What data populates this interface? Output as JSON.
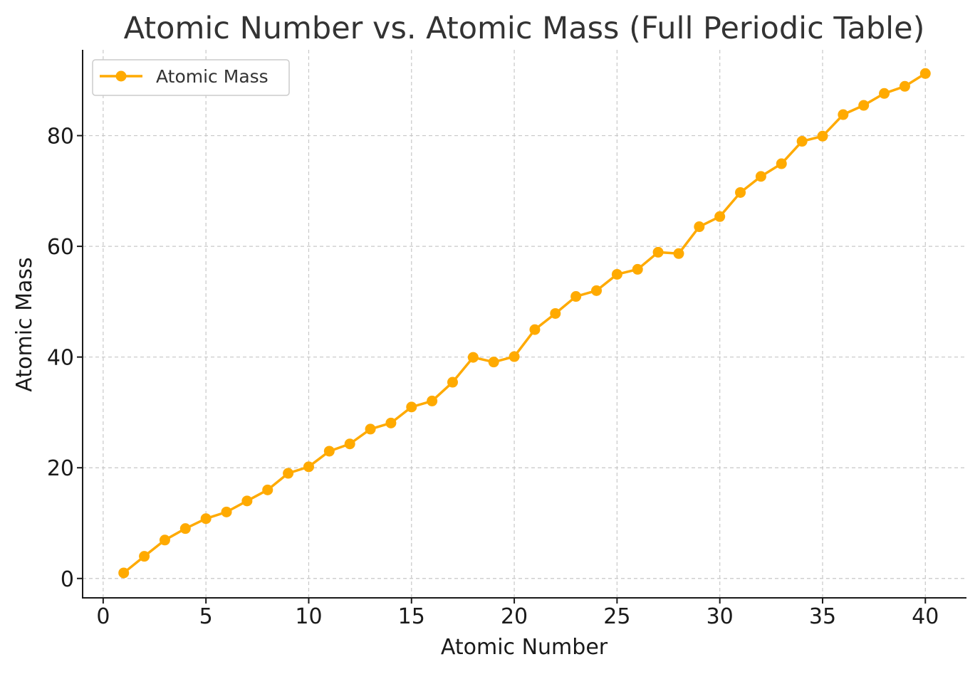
{
  "chart_data": {
    "type": "line",
    "title": "Atomic Number vs. Atomic Mass (Full Periodic Table)",
    "xlabel": "Atomic Number",
    "ylabel": "Atomic Mass",
    "xlim": [
      -1,
      42
    ],
    "ylim": [
      -3.5,
      95.5
    ],
    "x_ticks": [
      0,
      5,
      10,
      15,
      20,
      25,
      30,
      35,
      40
    ],
    "y_ticks": [
      0,
      20,
      40,
      60,
      80
    ],
    "grid": true,
    "legend_position": "upper-left",
    "series": [
      {
        "name": "Atomic Mass",
        "color": "#FFAA00",
        "marker": "circle",
        "x": [
          1,
          2,
          3,
          4,
          5,
          6,
          7,
          8,
          9,
          10,
          11,
          12,
          13,
          14,
          15,
          16,
          17,
          18,
          19,
          20,
          21,
          22,
          23,
          24,
          25,
          26,
          27,
          28,
          29,
          30,
          31,
          32,
          33,
          34,
          35,
          36,
          37,
          38,
          39,
          40
        ],
        "y": [
          1.008,
          4.0026,
          6.94,
          9.0122,
          10.81,
          12.011,
          14.007,
          15.999,
          18.998,
          20.18,
          22.99,
          24.305,
          26.982,
          28.085,
          30.974,
          32.06,
          35.45,
          39.948,
          39.098,
          40.078,
          44.956,
          47.867,
          50.942,
          51.996,
          54.938,
          55.845,
          58.933,
          58.693,
          63.546,
          65.38,
          69.723,
          72.63,
          74.922,
          78.971,
          79.904,
          83.798,
          85.468,
          87.62,
          88.906,
          91.224
        ]
      }
    ]
  }
}
